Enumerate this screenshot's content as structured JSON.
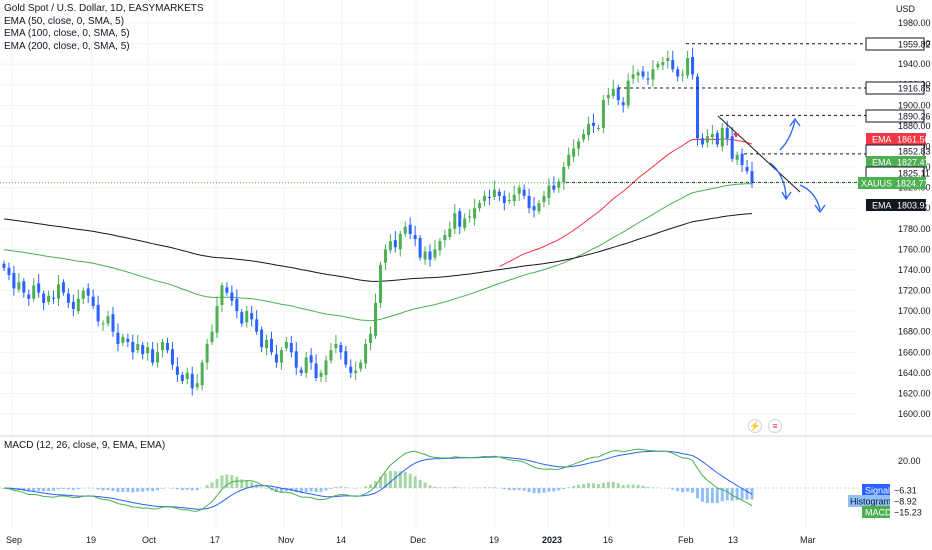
{
  "header": {
    "symbol_line": "Gold Spot / U.S. Dollar, 1D, EASYMARKETS",
    "studies": [
      "EMA (50, close, 0, SMA, 5)",
      "EMA (100, close, 0, SMA, 5)",
      "EMA (200, close, 0, SMA, 5)"
    ],
    "currency": "USD"
  },
  "macd_legend": "MACD (12, 26, close, 9, EMA, EMA)",
  "icons": {
    "flash": "lightning-icon",
    "flag": "us-flag-icon"
  },
  "price_labels": {
    "level_1": "1959.82",
    "level_2": "1916.85",
    "level_3": "1890.26",
    "ema50_tag": "EMA",
    "ema50_value": "1861.50",
    "level_4": "1852.83",
    "ema100_tag": "EMA",
    "ema100_value": "1827.47",
    "level_5": "1825.11",
    "symbol_tag": "XAUUSD",
    "symbol_value": "1824.77",
    "ema200_tag": "EMA",
    "ema200_value": "1803.92"
  },
  "macd_labels": {
    "signal_tag": "Signal",
    "signal_value": "−6.31",
    "hist_tag": "Histogram",
    "hist_value": "−8.92",
    "macd_tag": "MACD",
    "macd_value": "−15.23"
  },
  "colors": {
    "up": "#4caf50",
    "down": "#2962ff",
    "ema50": "#f23645",
    "ema100": "#4caf50",
    "ema200": "#131722",
    "signal": "#2962ff",
    "macd": "#4caf50",
    "hist_pos": "#a5d6a7",
    "hist_neg": "#90bff9"
  },
  "chart_data": [
    {
      "type": "candlestick",
      "title": "Gold Spot / U.S. Dollar, 1D, EASYMARKETS",
      "ylabel": "USD",
      "ylim": [
        1590,
        1990
      ],
      "y_ticks": [
        1600,
        1620,
        1640,
        1660,
        1680,
        1700,
        1720,
        1740,
        1760,
        1780,
        1800,
        1820,
        1840,
        1860,
        1880,
        1900,
        1920,
        1940,
        1960,
        1980
      ],
      "x_ticks": [
        "Sep",
        "19",
        "Oct",
        "17",
        "Nov",
        "14",
        "Dec",
        "19",
        "2023",
        "16",
        "Feb",
        "13",
        "Mar"
      ],
      "candles_close": [
        1742,
        1735,
        1722,
        1728,
        1718,
        1712,
        1725,
        1718,
        1708,
        1715,
        1712,
        1726,
        1718,
        1708,
        1702,
        1712,
        1720,
        1715,
        1705,
        1690,
        1688,
        1695,
        1680,
        1668,
        1675,
        1670,
        1660,
        1668,
        1658,
        1665,
        1650,
        1660,
        1670,
        1662,
        1648,
        1638,
        1632,
        1640,
        1625,
        1630,
        1650,
        1668,
        1680,
        1705,
        1725,
        1718,
        1710,
        1700,
        1688,
        1700,
        1692,
        1680,
        1665,
        1672,
        1660,
        1650,
        1662,
        1670,
        1660,
        1645,
        1640,
        1655,
        1650,
        1635,
        1640,
        1652,
        1662,
        1668,
        1660,
        1648,
        1640,
        1642,
        1650,
        1668,
        1678,
        1708,
        1745,
        1760,
        1768,
        1762,
        1775,
        1782,
        1775,
        1770,
        1752,
        1758,
        1750,
        1760,
        1768,
        1774,
        1780,
        1795,
        1782,
        1790,
        1792,
        1800,
        1805,
        1812,
        1810,
        1818,
        1812,
        1805,
        1808,
        1813,
        1820,
        1812,
        1800,
        1798,
        1805,
        1812,
        1822,
        1818,
        1826,
        1840,
        1852,
        1858,
        1865,
        1872,
        1882,
        1880,
        1878,
        1905,
        1910,
        1916,
        1905,
        1900,
        1924,
        1930,
        1932,
        1928,
        1925,
        1935,
        1940,
        1942,
        1946,
        1935,
        1928,
        1930,
        1946,
        1930,
        1868,
        1862,
        1870,
        1872,
        1862,
        1878,
        1868,
        1848,
        1852,
        1842,
        1836,
        1824.77
      ],
      "ema50_last": 1861.5,
      "ema100_last": 1827.47,
      "ema200_last": 1803.92,
      "levels": [
        1959.82,
        1916.85,
        1890.26,
        1852.83,
        1825.11
      ],
      "last_price": 1824.77
    },
    {
      "type": "line",
      "title": "MACD (12, 26, close, 9, EMA, EMA)",
      "y_ticks": [
        20.0
      ],
      "series": [
        {
          "name": "MACD",
          "last": -15.23
        },
        {
          "name": "Signal",
          "last": -6.31
        },
        {
          "name": "Histogram",
          "last": -8.92
        }
      ]
    }
  ]
}
